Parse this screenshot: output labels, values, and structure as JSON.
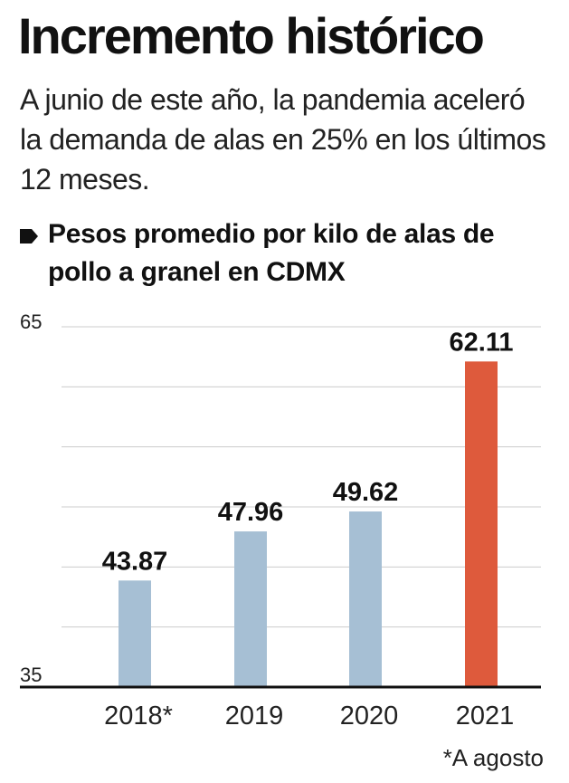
{
  "header": {
    "title": "Incremento histórico",
    "subtitle": "A junio de este año, la pandemia aceleró la demanda de alas en 25% en los últimos 12 meses."
  },
  "chart_data": {
    "type": "bar",
    "title": "Pesos promedio por kilo de alas de pollo a granel en CDMX",
    "categories": [
      "2018*",
      "2019",
      "2020",
      "2021"
    ],
    "values": [
      43.87,
      47.96,
      49.62,
      62.11
    ],
    "value_labels": [
      "43.87",
      "47.96",
      "49.62",
      "62.11"
    ],
    "ylim": [
      35,
      65
    ],
    "y_tick_labels": [
      "65",
      "35"
    ],
    "gridlines": [
      40,
      45,
      50,
      55,
      60
    ],
    "xlabel": "",
    "ylabel": "",
    "colors": [
      "#a6bfd4",
      "#a6bfd4",
      "#a6bfd4",
      "#de5a3c"
    ],
    "grid_color": "#cccccc",
    "axis_color": "#111111"
  },
  "footnote": "*A agosto",
  "icons": {
    "bullet": "bullet-marker-icon"
  }
}
